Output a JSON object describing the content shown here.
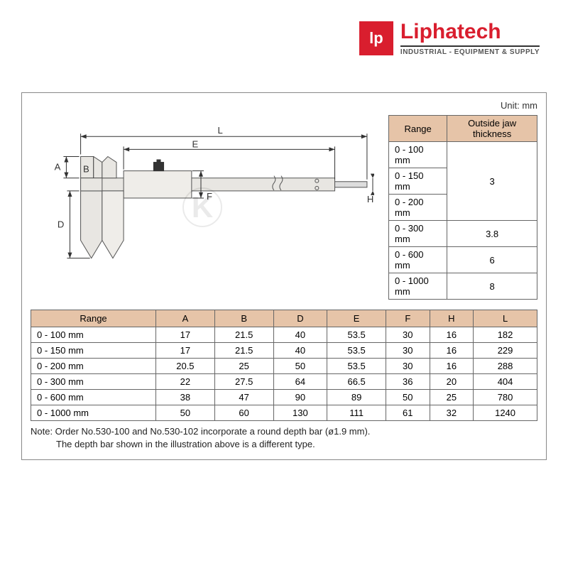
{
  "brand": {
    "logo_text": "lp",
    "name": "Liphatech",
    "tagline": "INDUSTRIAL - EQUIPMENT & SUPPLY"
  },
  "unit_label": "Unit: mm",
  "diagram": {
    "labels": {
      "A": "A",
      "B": "B",
      "D": "D",
      "E": "E",
      "F": "F",
      "H": "H",
      "L": "L"
    }
  },
  "side_table": {
    "headers": [
      "Range",
      "Outside jaw thickness"
    ],
    "rows": [
      {
        "range": "0 - 100 mm",
        "thickness": "3",
        "span_start": true,
        "span": 3
      },
      {
        "range": "0 - 150 mm"
      },
      {
        "range": "0 - 200 mm"
      },
      {
        "range": "0 - 300 mm",
        "thickness": "3.8"
      },
      {
        "range": "0 - 600 mm",
        "thickness": "6"
      },
      {
        "range": "0 - 1000 mm",
        "thickness": "8"
      }
    ]
  },
  "main_table": {
    "headers": [
      "Range",
      "A",
      "B",
      "D",
      "E",
      "F",
      "H",
      "L"
    ],
    "rows": [
      [
        "0 - 100 mm",
        "17",
        "21.5",
        "40",
        "53.5",
        "30",
        "16",
        "182"
      ],
      [
        "0 - 150 mm",
        "17",
        "21.5",
        "40",
        "53.5",
        "30",
        "16",
        "229"
      ],
      [
        "0 - 200 mm",
        "20.5",
        "25",
        "50",
        "53.5",
        "30",
        "16",
        "288"
      ],
      [
        "0 - 300 mm",
        "22",
        "27.5",
        "64",
        "66.5",
        "36",
        "20",
        "404"
      ],
      [
        "0 - 600 mm",
        "38",
        "47",
        "90",
        "89",
        "50",
        "25",
        "780"
      ],
      [
        "0 - 1000 mm",
        "50",
        "60",
        "130",
        "111",
        "61",
        "32",
        "1240"
      ]
    ]
  },
  "note": {
    "line1": "Note: Order No.530-100 and No.530-102 incorporate a round depth bar (ø1.9 mm).",
    "line2": "The depth bar shown in the illustration above is a different type."
  },
  "colors": {
    "brand_red": "#d91e2e",
    "header_bg": "#e6c4a8",
    "border": "#666666"
  }
}
